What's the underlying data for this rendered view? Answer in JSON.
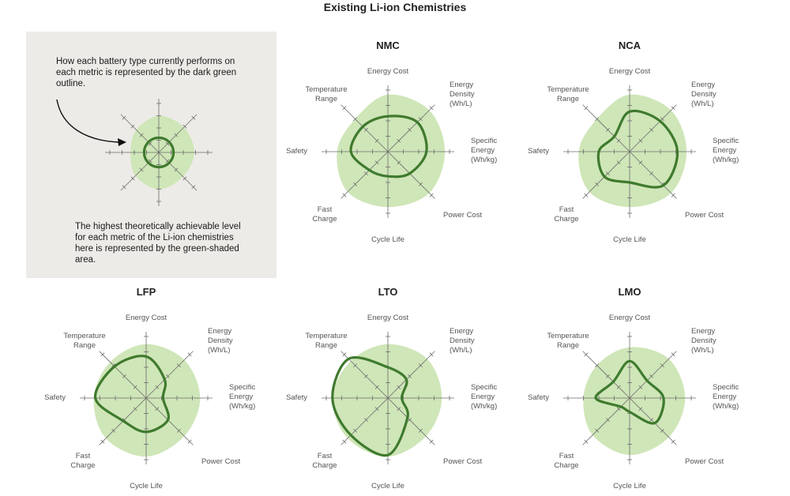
{
  "title": "Existing Li-ion Chemistries",
  "legend": {
    "outline_text": "How each battery type currently performs on each metric is represented by the dark green outline.",
    "area_text": "The highest theoretically achievable level for each metric of the Li-ion chemistries here is represented by the green-shaded area."
  },
  "colors": {
    "outline": "#3f7a2e",
    "area": "#cfe6b8",
    "axis": "#6b6b6b",
    "panel": "#edebe7"
  },
  "axes": [
    {
      "key": "energy_cost",
      "lines": [
        "Energy Cost"
      ]
    },
    {
      "key": "energy_density",
      "lines": [
        "Energy",
        "Density",
        "(Wh/L)"
      ]
    },
    {
      "key": "specific_energy",
      "lines": [
        "Specific",
        "Energy",
        "(Wh/kg)"
      ]
    },
    {
      "key": "power_cost",
      "lines": [
        "Power Cost"
      ]
    },
    {
      "key": "cycle_life",
      "lines": [
        "Cycle Life"
      ]
    },
    {
      "key": "fast_charge",
      "lines": [
        "Fast",
        "Charge"
      ]
    },
    {
      "key": "safety",
      "lines": [
        "Safety"
      ]
    },
    {
      "key": "temperature_range",
      "lines": [
        "Temperature",
        "Range"
      ]
    }
  ],
  "chart_data": [
    {
      "type": "radar",
      "title": "NMC",
      "max": 4,
      "potential": [
        3.7,
        3.8,
        3.7,
        3.8,
        3.6,
        3.7,
        3.3,
        3.0
      ],
      "current": [
        2.3,
        2.7,
        2.5,
        2.0,
        1.6,
        1.7,
        2.4,
        2.3
      ]
    },
    {
      "type": "radar",
      "title": "NCA",
      "max": 4,
      "potential": [
        3.7,
        3.8,
        3.7,
        3.8,
        3.6,
        3.7,
        3.3,
        3.0
      ],
      "current": [
        2.6,
        2.8,
        3.1,
        3.1,
        2.0,
        2.3,
        2.0,
        1.4
      ]
    },
    {
      "type": "radar",
      "title": "LFP",
      "max": 4,
      "potential": [
        3.5,
        3.5,
        3.5,
        3.5,
        3.8,
        3.7,
        3.4,
        3.3
      ],
      "current": [
        2.7,
        1.7,
        1.1,
        2.0,
        2.2,
        2.1,
        3.3,
        2.9
      ]
    },
    {
      "type": "radar",
      "title": "LTO",
      "max": 4,
      "potential": [
        3.5,
        3.6,
        3.5,
        3.5,
        3.8,
        3.7,
        3.6,
        3.4
      ],
      "current": [
        2.0,
        1.7,
        0.9,
        1.8,
        3.7,
        3.4,
        3.6,
        3.6
      ]
    },
    {
      "type": "radar",
      "title": "LMO",
      "max": 4,
      "potential": [
        3.3,
        3.6,
        3.6,
        3.6,
        3.7,
        3.4,
        3.0,
        3.0
      ],
      "current": [
        2.4,
        1.6,
        2.2,
        2.3,
        0.9,
        0.8,
        2.2,
        1.5
      ]
    }
  ],
  "legend_chart": {
    "max": 4,
    "potential": [
      3.0,
      2.9,
      2.9,
      2.8,
      3.0,
      2.7,
      2.3,
      2.6
    ],
    "current": [
      1.2,
      1.2,
      1.2,
      1.2,
      1.2,
      1.2,
      1.2,
      1.2
    ]
  }
}
